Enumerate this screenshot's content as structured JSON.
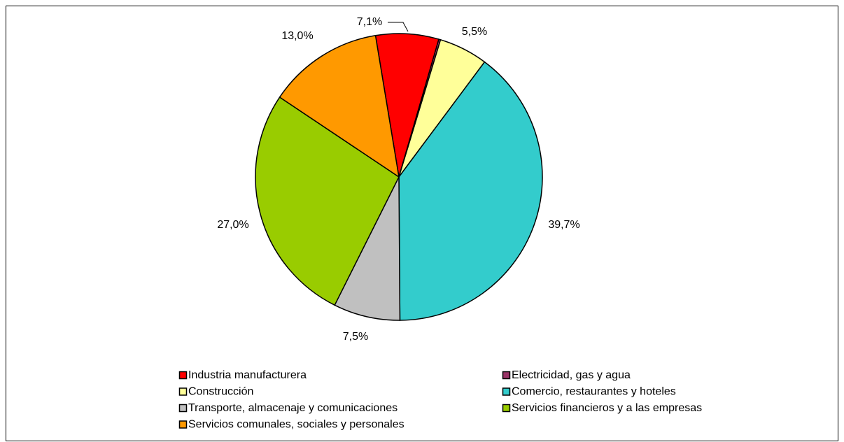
{
  "chart_data": {
    "type": "pie",
    "categories": [
      "Industria manufacturera",
      "Electricidad, gas y agua",
      "Construcción",
      "Comercio, restaurantes y hoteles",
      "Transporte, almacenaje y comunicaciones",
      "Servicios financieros y a las empresas",
      "Servicios comunales, sociales y personales"
    ],
    "values": [
      7.1,
      0.2,
      5.5,
      39.7,
      7.5,
      27.0,
      13.0
    ],
    "value_labels": [
      "7,1%",
      null,
      "5,5%",
      "39,7%",
      "7,5%",
      "27,0%",
      "13,0%"
    ],
    "colors": [
      "#ff0000",
      "#993366",
      "#ffff99",
      "#33cccc",
      "#c0c0c0",
      "#99cc00",
      "#ff9900"
    ],
    "legend": "bottom"
  }
}
